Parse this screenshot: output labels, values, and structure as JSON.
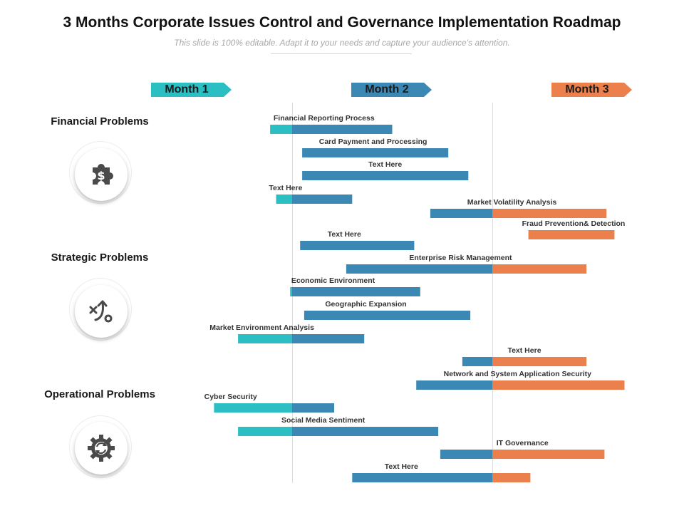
{
  "header": {
    "title": "3 Months Corporate Issues Control and Governance Implementation Roadmap",
    "subtitle": "This slide is 100% editable. Adapt it to your needs and capture your audience's attention."
  },
  "months": [
    {
      "label": "Month 1",
      "color": "#2bbfc4"
    },
    {
      "label": "Month 2",
      "color": "#3b88b5"
    },
    {
      "label": "Month 3",
      "color": "#ec804d"
    }
  ],
  "categories": [
    {
      "label": "Financial Problems",
      "icon": "puzzle-dollar-icon"
    },
    {
      "label": "Strategic Problems",
      "icon": "strategy-path-icon"
    },
    {
      "label": "Operational Problems",
      "icon": "gear-cycle-icon"
    }
  ],
  "colors": {
    "teal": "#2bbfc4",
    "blue": "#3b88b5",
    "orange": "#ec804d",
    "icon": "#4a4a4a"
  },
  "chart_data": {
    "type": "gantt",
    "unit": "month",
    "range": [
      0,
      3
    ],
    "tasks": [
      {
        "label": "Financial Reporting Process",
        "start": 0.89,
        "end": 1.5
      },
      {
        "label": "Card Payment and Processing",
        "start": 1.05,
        "end": 1.78
      },
      {
        "label": "Text Here",
        "start": 1.05,
        "end": 1.88
      },
      {
        "label": "Text Here",
        "start": 0.92,
        "end": 1.3
      },
      {
        "label": "Market Volatility Analysis",
        "start": 1.69,
        "end": 2.57
      },
      {
        "label": "Fraud Prevention& Detection",
        "start": 2.18,
        "end": 2.61
      },
      {
        "label": "Text Here",
        "start": 1.04,
        "end": 1.61
      },
      {
        "label": "Enterprise Risk Management",
        "start": 1.27,
        "end": 2.47
      },
      {
        "label": "Economic Environment",
        "start": 0.99,
        "end": 1.64
      },
      {
        "label": "Geographic Expansion",
        "start": 1.06,
        "end": 1.89
      },
      {
        "label": "Market Environment Analysis",
        "start": 0.73,
        "end": 1.36
      },
      {
        "label": "Text Here",
        "start": 1.85,
        "end": 2.47
      },
      {
        "label": "Network and System Application Security",
        "start": 1.62,
        "end": 2.66
      },
      {
        "label": "Cyber Security",
        "start": 0.61,
        "end": 1.21
      },
      {
        "label": "Social Media Sentiment",
        "start": 0.73,
        "end": 1.73
      },
      {
        "label": "IT Governance",
        "start": 1.74,
        "end": 2.56
      },
      {
        "label": "Text Here",
        "start": 1.3,
        "end": 2.19
      }
    ]
  }
}
